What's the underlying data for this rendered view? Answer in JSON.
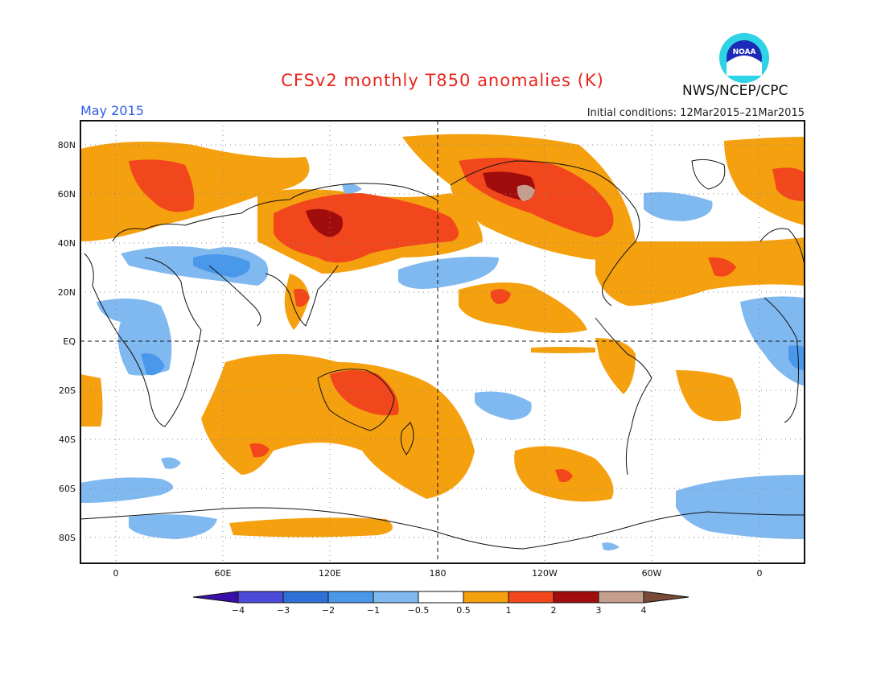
{
  "header": {
    "title": "CFSv2 monthly T850 anomalies (K)",
    "period": "May 2015",
    "initial_conditions": "Initial conditions: 12Mar2015–21Mar2015",
    "organization": "NWS/NCEP/CPC",
    "logo_text": "NOAA"
  },
  "map": {
    "lat_labels": [
      "80N",
      "60N",
      "40N",
      "20N",
      "EQ",
      "20S",
      "40S",
      "60S",
      "80S"
    ],
    "lon_labels": [
      "0",
      "60E",
      "120E",
      "180",
      "120W",
      "60W",
      "0"
    ]
  },
  "colorbar": {
    "tick_labels": [
      "−4",
      "−3",
      "−2",
      "−1",
      "−0.5",
      "0.5",
      "1",
      "2",
      "3",
      "4"
    ],
    "colors": [
      "#3a0fa8",
      "#4a4bd6",
      "#2e6fd8",
      "#4a98ea",
      "#80b9f0",
      "#ffffff",
      "#f5a00f",
      "#f2471c",
      "#a10d0d",
      "#c69e8e",
      "#7a4a38"
    ]
  },
  "colors": {
    "title": "#e8251c",
    "period": "#2a5ce6"
  }
}
